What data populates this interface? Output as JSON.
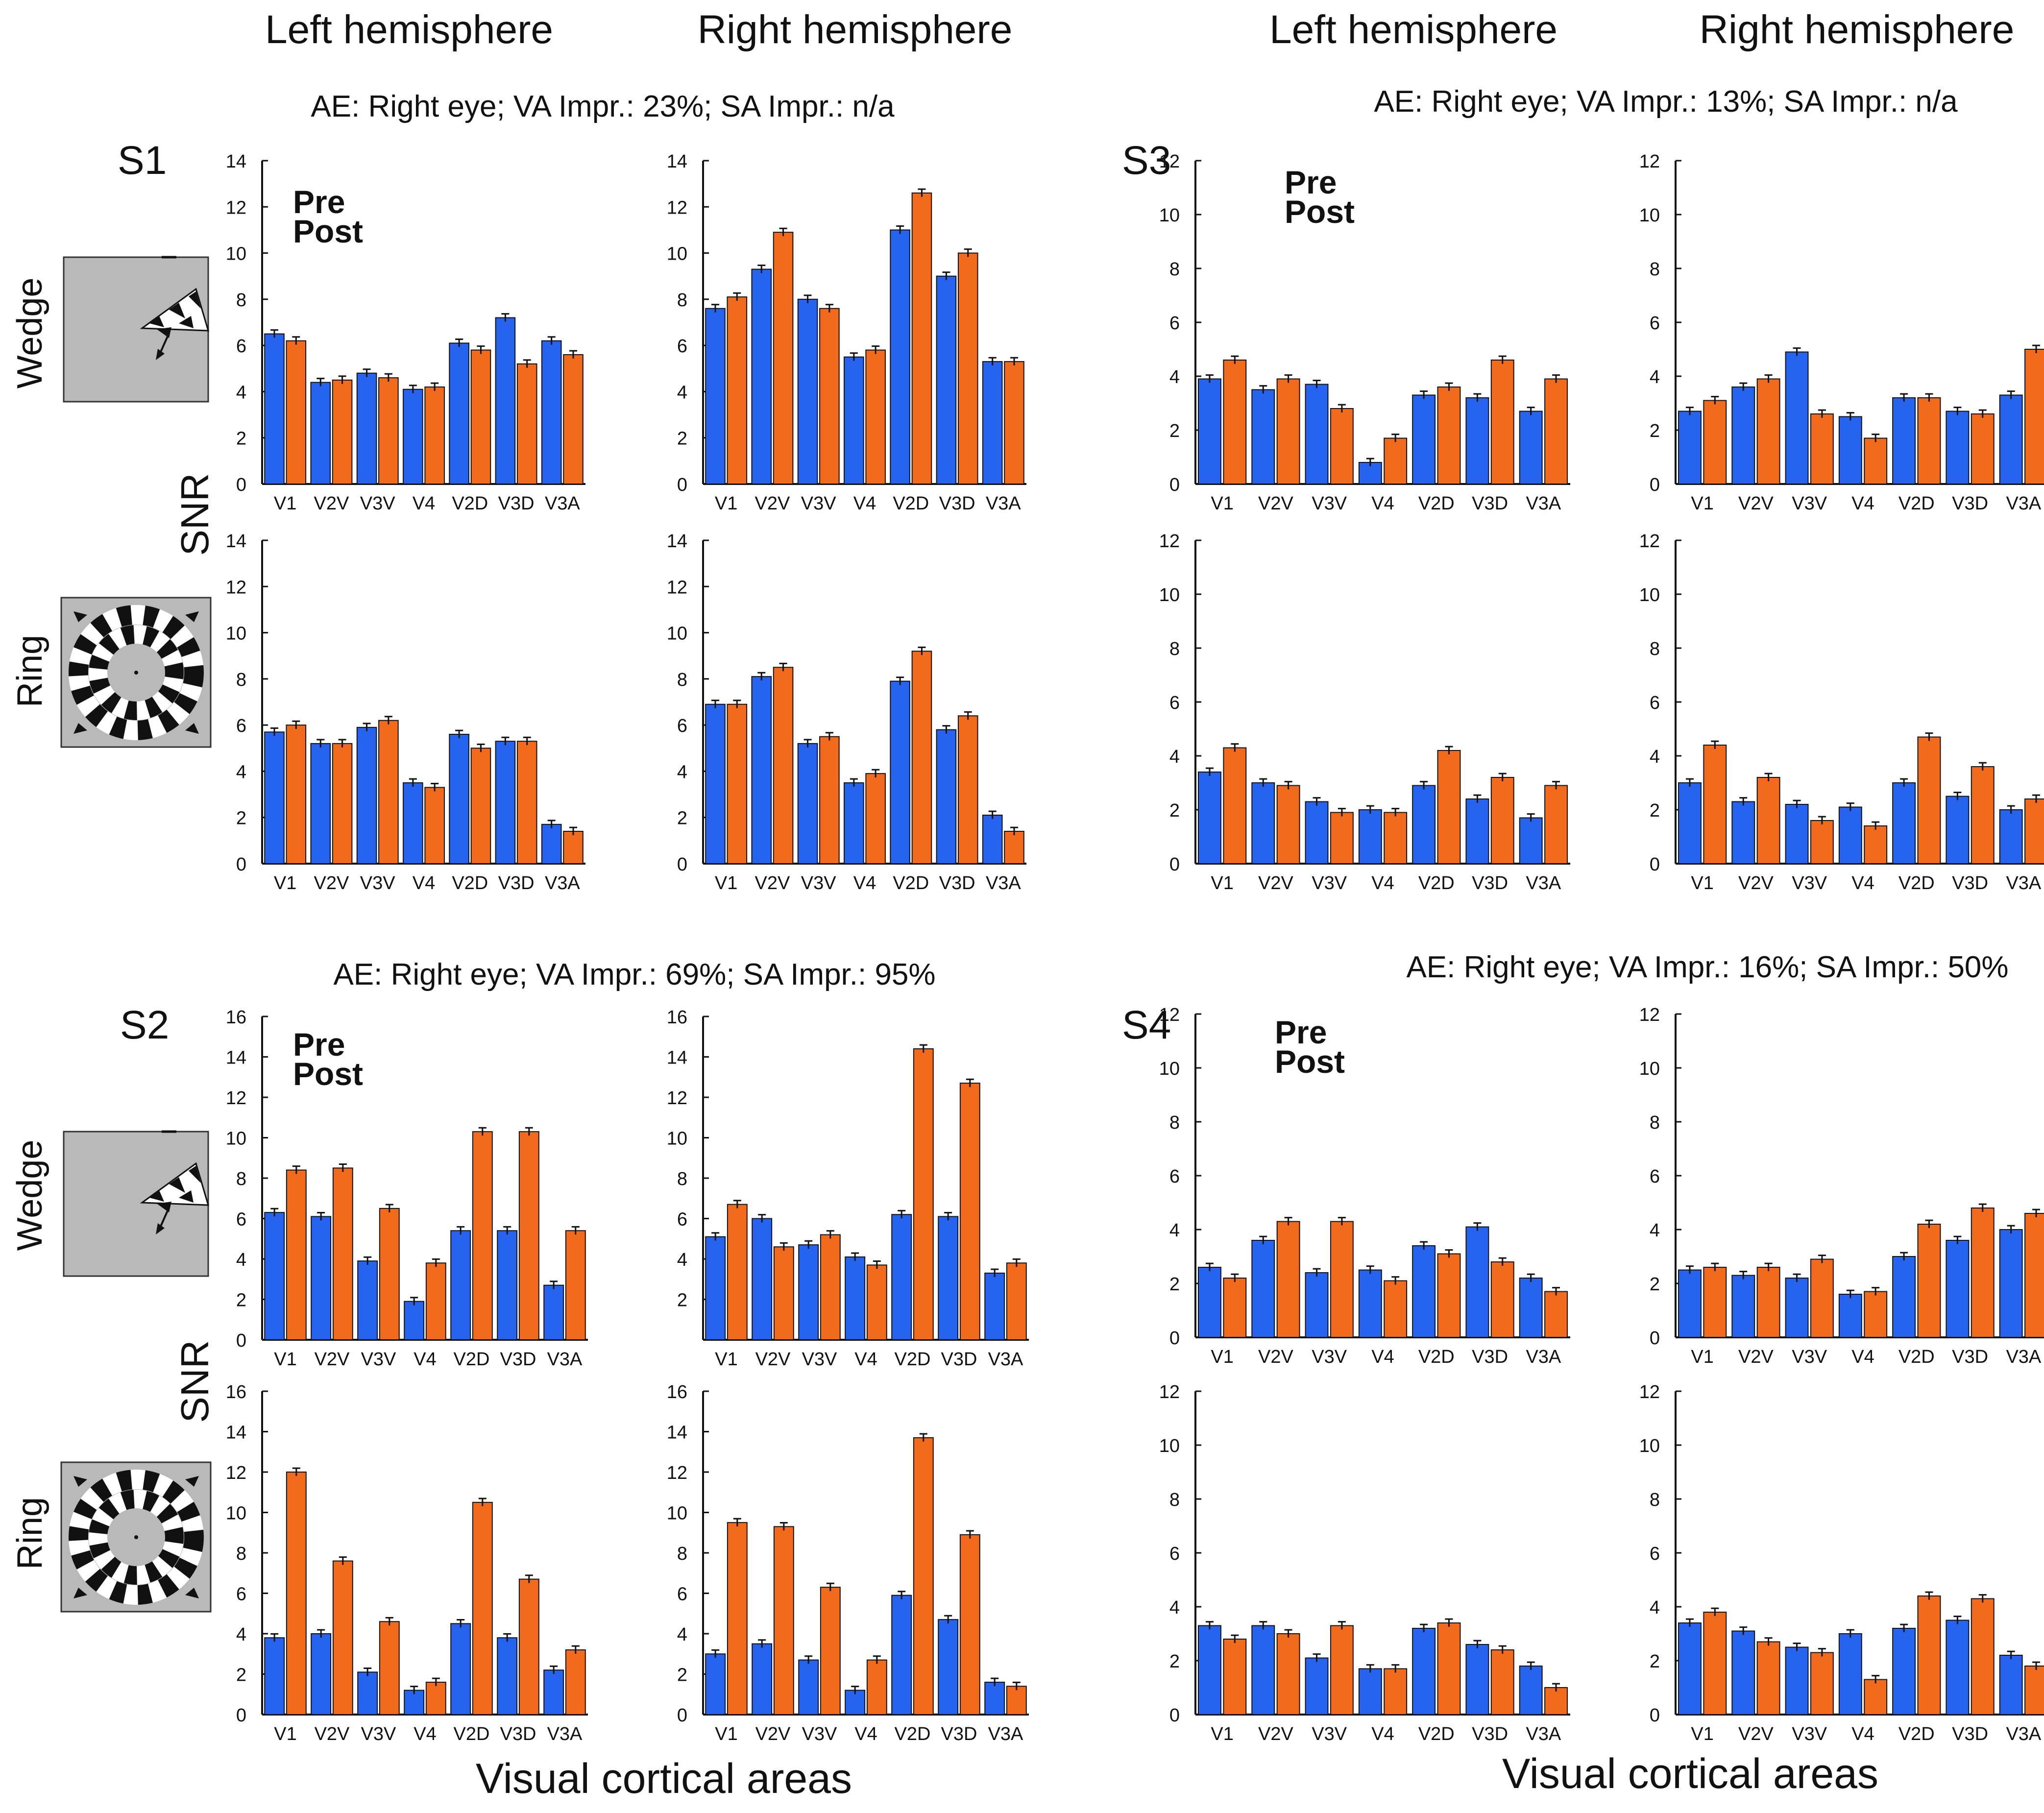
{
  "colors": {
    "pre": "#2664f0",
    "post": "#f26b1d",
    "axis": "#111111",
    "stim_bg": "#b9b9b9"
  },
  "labels": {
    "left_hemisphere": "Left hemisphere",
    "right_hemisphere": "Right hemisphere",
    "snr": "SNR",
    "wedge": "Wedge",
    "ring": "Ring",
    "pre": "Pre",
    "post": "Post",
    "x_title": "Visual cortical areas"
  },
  "subjects": [
    {
      "id": "S1",
      "info": "AE: Right eye;  VA Impr.:  23%; SA Impr.: n/a"
    },
    {
      "id": "S3",
      "info": "AE: Right eye;  VA Impr.:  13%; SA Impr.: n/a"
    },
    {
      "id": "S2",
      "info": "AE: Right eye;  VA Impr.:  69%; SA Impr.: 95%"
    },
    {
      "id": "S4",
      "info": "AE: Right eye;  VA Impr.: 16%; SA Impr.: 50%"
    }
  ],
  "chart_data": [
    {
      "id": "S1-wedge-left",
      "type": "bar",
      "categories": [
        "V1",
        "V2V",
        "V3V",
        "V4",
        "V2D",
        "V3D",
        "V3A"
      ],
      "ylim": [
        0,
        14
      ],
      "yticks": [
        0,
        2,
        4,
        6,
        8,
        10,
        12,
        14
      ],
      "series": [
        {
          "name": "Pre",
          "values": [
            6.5,
            4.4,
            4.8,
            4.1,
            6.1,
            7.2,
            6.2
          ]
        },
        {
          "name": "Post",
          "values": [
            6.2,
            4.5,
            4.6,
            4.2,
            5.8,
            5.2,
            5.6
          ]
        }
      ]
    },
    {
      "id": "S1-wedge-right",
      "type": "bar",
      "categories": [
        "V1",
        "V2V",
        "V3V",
        "V4",
        "V2D",
        "V3D",
        "V3A"
      ],
      "ylim": [
        0,
        14
      ],
      "yticks": [
        0,
        2,
        4,
        6,
        8,
        10,
        12,
        14
      ],
      "series": [
        {
          "name": "Pre",
          "values": [
            7.6,
            9.3,
            8.0,
            5.5,
            11.0,
            9.0,
            5.3
          ]
        },
        {
          "name": "Post",
          "values": [
            8.1,
            10.9,
            7.6,
            5.8,
            12.6,
            10.0,
            5.3
          ]
        }
      ]
    },
    {
      "id": "S1-ring-left",
      "type": "bar",
      "categories": [
        "V1",
        "V2V",
        "V3V",
        "V4",
        "V2D",
        "V3D",
        "V3A"
      ],
      "ylim": [
        0,
        14
      ],
      "yticks": [
        0,
        2,
        4,
        6,
        8,
        10,
        12,
        14
      ],
      "series": [
        {
          "name": "Pre",
          "values": [
            5.7,
            5.2,
            5.9,
            3.5,
            5.6,
            5.3,
            1.7
          ]
        },
        {
          "name": "Post",
          "values": [
            6.0,
            5.2,
            6.2,
            3.3,
            5.0,
            5.3,
            1.4
          ]
        }
      ]
    },
    {
      "id": "S1-ring-right",
      "type": "bar",
      "categories": [
        "V1",
        "V2V",
        "V3V",
        "V4",
        "V2D",
        "V3D",
        "V3A"
      ],
      "ylim": [
        0,
        14
      ],
      "yticks": [
        0,
        2,
        4,
        6,
        8,
        10,
        12,
        14
      ],
      "series": [
        {
          "name": "Pre",
          "values": [
            6.9,
            8.1,
            5.2,
            3.5,
            7.9,
            5.8,
            2.1
          ]
        },
        {
          "name": "Post",
          "values": [
            6.9,
            8.5,
            5.5,
            3.9,
            9.2,
            6.4,
            1.4
          ]
        }
      ]
    },
    {
      "id": "S3-wedge-left",
      "type": "bar",
      "categories": [
        "V1",
        "V2V",
        "V3V",
        "V4",
        "V2D",
        "V3D",
        "V3A"
      ],
      "ylim": [
        0,
        12
      ],
      "yticks": [
        0,
        2,
        4,
        6,
        8,
        10,
        12
      ],
      "series": [
        {
          "name": "Pre",
          "values": [
            3.9,
            3.5,
            3.7,
            0.8,
            3.3,
            3.2,
            2.7
          ]
        },
        {
          "name": "Post",
          "values": [
            4.6,
            3.9,
            2.8,
            1.7,
            3.6,
            4.6,
            3.9
          ]
        }
      ]
    },
    {
      "id": "S3-wedge-right",
      "type": "bar",
      "categories": [
        "V1",
        "V2V",
        "V3V",
        "V4",
        "V2D",
        "V3D",
        "V3A"
      ],
      "ylim": [
        0,
        12
      ],
      "yticks": [
        0,
        2,
        4,
        6,
        8,
        10,
        12
      ],
      "series": [
        {
          "name": "Pre",
          "values": [
            2.7,
            3.6,
            4.9,
            2.5,
            3.2,
            2.7,
            3.3
          ]
        },
        {
          "name": "Post",
          "values": [
            3.1,
            3.9,
            2.6,
            1.7,
            3.2,
            2.6,
            5.0
          ]
        }
      ]
    },
    {
      "id": "S3-ring-left",
      "type": "bar",
      "categories": [
        "V1",
        "V2V",
        "V3V",
        "V4",
        "V2D",
        "V3D",
        "V3A"
      ],
      "ylim": [
        0,
        12
      ],
      "yticks": [
        0,
        2,
        4,
        6,
        8,
        10,
        12
      ],
      "series": [
        {
          "name": "Pre",
          "values": [
            3.4,
            3.0,
            2.3,
            2.0,
            2.9,
            2.4,
            1.7
          ]
        },
        {
          "name": "Post",
          "values": [
            4.3,
            2.9,
            1.9,
            1.9,
            4.2,
            3.2,
            2.9
          ]
        }
      ]
    },
    {
      "id": "S3-ring-right",
      "type": "bar",
      "categories": [
        "V1",
        "V2V",
        "V3V",
        "V4",
        "V2D",
        "V3D",
        "V3A"
      ],
      "ylim": [
        0,
        12
      ],
      "yticks": [
        0,
        2,
        4,
        6,
        8,
        10,
        12
      ],
      "series": [
        {
          "name": "Pre",
          "values": [
            3.0,
            2.3,
            2.2,
            2.1,
            3.0,
            2.5,
            2.0
          ]
        },
        {
          "name": "Post",
          "values": [
            4.4,
            3.2,
            1.6,
            1.4,
            4.7,
            3.6,
            2.4
          ]
        }
      ]
    },
    {
      "id": "S2-wedge-left",
      "type": "bar",
      "categories": [
        "V1",
        "V2V",
        "V3V",
        "V4",
        "V2D",
        "V3D",
        "V3A"
      ],
      "ylim": [
        0,
        16
      ],
      "yticks": [
        0,
        2,
        4,
        6,
        8,
        10,
        12,
        14,
        16
      ],
      "series": [
        {
          "name": "Pre",
          "values": [
            6.3,
            6.1,
            3.9,
            1.9,
            5.4,
            5.4,
            2.7
          ]
        },
        {
          "name": "Post",
          "values": [
            8.4,
            8.5,
            6.5,
            3.8,
            10.3,
            10.3,
            5.4
          ]
        }
      ]
    },
    {
      "id": "S2-wedge-right",
      "type": "bar",
      "categories": [
        "V1",
        "V2V",
        "V3V",
        "V4",
        "V2D",
        "V3D",
        "V3A"
      ],
      "ylim": [
        0,
        16
      ],
      "yticks": [
        2,
        4,
        6,
        8,
        10,
        12,
        14,
        16
      ],
      "series": [
        {
          "name": "Pre",
          "values": [
            5.1,
            6.0,
            4.7,
            4.1,
            6.2,
            6.1,
            3.3
          ]
        },
        {
          "name": "Post",
          "values": [
            6.7,
            4.6,
            5.2,
            3.7,
            14.4,
            12.7,
            3.8
          ]
        }
      ]
    },
    {
      "id": "S2-ring-left",
      "type": "bar",
      "categories": [
        "V1",
        "V2V",
        "V3V",
        "V4",
        "V2D",
        "V3D",
        "V3A"
      ],
      "ylim": [
        0,
        16
      ],
      "yticks": [
        0,
        2,
        4,
        6,
        8,
        10,
        12,
        14,
        16
      ],
      "series": [
        {
          "name": "Pre",
          "values": [
            3.8,
            4.0,
            2.1,
            1.2,
            4.5,
            3.8,
            2.2
          ]
        },
        {
          "name": "Post",
          "values": [
            12.0,
            7.6,
            4.6,
            1.6,
            10.5,
            6.7,
            3.2
          ]
        }
      ]
    },
    {
      "id": "S2-ring-right",
      "type": "bar",
      "categories": [
        "V1",
        "V2V",
        "V3V",
        "V4",
        "V2D",
        "V3D",
        "V3A"
      ],
      "ylim": [
        0,
        16
      ],
      "yticks": [
        0,
        2,
        4,
        6,
        8,
        10,
        12,
        14,
        16
      ],
      "series": [
        {
          "name": "Pre",
          "values": [
            3.0,
            3.5,
            2.7,
            1.2,
            5.9,
            4.7,
            1.6
          ]
        },
        {
          "name": "Post",
          "values": [
            9.5,
            9.3,
            6.3,
            2.7,
            13.7,
            8.9,
            1.4
          ]
        }
      ]
    },
    {
      "id": "S4-wedge-left",
      "type": "bar",
      "categories": [
        "V1",
        "V2V",
        "V3V",
        "V4",
        "V2D",
        "V3D",
        "V3A"
      ],
      "ylim": [
        0,
        12
      ],
      "yticks": [
        0,
        2,
        4,
        6,
        8,
        10,
        12
      ],
      "series": [
        {
          "name": "Pre",
          "values": [
            2.6,
            3.6,
            2.4,
            2.5,
            3.4,
            4.1,
            2.2
          ]
        },
        {
          "name": "Post",
          "values": [
            2.2,
            4.3,
            4.3,
            2.1,
            3.1,
            2.8,
            1.7
          ]
        }
      ]
    },
    {
      "id": "S4-wedge-right",
      "type": "bar",
      "categories": [
        "V1",
        "V2V",
        "V3V",
        "V4",
        "V2D",
        "V3D",
        "V3A"
      ],
      "ylim": [
        0,
        12
      ],
      "yticks": [
        0,
        2,
        4,
        6,
        8,
        10,
        12
      ],
      "series": [
        {
          "name": "Pre",
          "values": [
            2.5,
            2.3,
            2.2,
            1.6,
            3.0,
            3.6,
            4.0
          ]
        },
        {
          "name": "Post",
          "values": [
            2.6,
            2.6,
            2.9,
            1.7,
            4.2,
            4.8,
            4.6
          ]
        }
      ]
    },
    {
      "id": "S4-ring-left",
      "type": "bar",
      "categories": [
        "V1",
        "V2V",
        "V3V",
        "V4",
        "V2D",
        "V3D",
        "V3A"
      ],
      "ylim": [
        0,
        12
      ],
      "yticks": [
        0,
        2,
        4,
        6,
        8,
        10,
        12
      ],
      "series": [
        {
          "name": "Pre",
          "values": [
            3.3,
            3.3,
            2.1,
            1.7,
            3.2,
            2.6,
            1.8
          ]
        },
        {
          "name": "Post",
          "values": [
            2.8,
            3.0,
            3.3,
            1.7,
            3.4,
            2.4,
            1.0
          ]
        }
      ]
    },
    {
      "id": "S4-ring-right",
      "type": "bar",
      "categories": [
        "V1",
        "V2V",
        "V3V",
        "V4",
        "V2D",
        "V3D",
        "V3A"
      ],
      "ylim": [
        0,
        12
      ],
      "yticks": [
        0,
        2,
        4,
        6,
        8,
        10,
        12
      ],
      "series": [
        {
          "name": "Pre",
          "values": [
            3.4,
            3.1,
            2.5,
            3.0,
            3.2,
            3.5,
            2.2
          ]
        },
        {
          "name": "Post",
          "values": [
            3.8,
            2.7,
            2.3,
            1.3,
            4.4,
            4.3,
            1.8
          ]
        }
      ]
    }
  ]
}
